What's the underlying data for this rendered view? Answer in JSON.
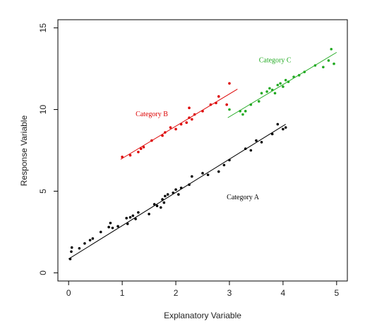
{
  "chart_data": {
    "type": "scatter",
    "xlabel": "Explanatory Variable",
    "ylabel": "Response Variable",
    "xlim": [
      -0.2,
      5.2
    ],
    "ylim": [
      -0.5,
      15.5
    ],
    "xticks": [
      0,
      1,
      2,
      3,
      4,
      5
    ],
    "yticks": [
      0,
      5,
      10,
      15
    ],
    "grid": false,
    "series": [
      {
        "name": "Category A",
        "color": "#000000",
        "points": [
          [
            0.03,
            0.85
          ],
          [
            0.05,
            1.3
          ],
          [
            0.06,
            1.55
          ],
          [
            0.2,
            1.5
          ],
          [
            0.3,
            1.8
          ],
          [
            0.4,
            2.0
          ],
          [
            0.45,
            2.1
          ],
          [
            0.6,
            2.5
          ],
          [
            0.75,
            2.8
          ],
          [
            0.78,
            3.05
          ],
          [
            0.82,
            2.75
          ],
          [
            0.92,
            2.85
          ],
          [
            1.08,
            3.35
          ],
          [
            1.1,
            3.0
          ],
          [
            1.15,
            3.4
          ],
          [
            1.2,
            3.5
          ],
          [
            1.25,
            3.3
          ],
          [
            1.3,
            3.7
          ],
          [
            1.5,
            3.6
          ],
          [
            1.6,
            4.2
          ],
          [
            1.65,
            4.1
          ],
          [
            1.72,
            4.0
          ],
          [
            1.75,
            4.5
          ],
          [
            1.78,
            4.3
          ],
          [
            1.8,
            4.7
          ],
          [
            1.85,
            4.8
          ],
          [
            1.95,
            4.9
          ],
          [
            2.0,
            5.1
          ],
          [
            2.05,
            4.8
          ],
          [
            2.1,
            5.2
          ],
          [
            2.25,
            5.4
          ],
          [
            2.3,
            5.9
          ],
          [
            2.5,
            6.1
          ],
          [
            2.6,
            6.0
          ],
          [
            2.8,
            6.2
          ],
          [
            2.9,
            6.6
          ],
          [
            3.0,
            6.9
          ],
          [
            3.3,
            7.6
          ],
          [
            3.4,
            7.5
          ],
          [
            3.5,
            8.1
          ],
          [
            3.6,
            8.0
          ],
          [
            3.8,
            8.5
          ],
          [
            3.9,
            9.1
          ],
          [
            4.0,
            8.8
          ],
          [
            4.05,
            8.9
          ]
        ],
        "fit": {
          "x": [
            0.0,
            4.05
          ],
          "y": [
            0.85,
            9.1
          ]
        },
        "label": {
          "text": "Category A",
          "x": 2.95,
          "y": 4.5
        }
      },
      {
        "name": "Category B",
        "color": "#dd0000",
        "points": [
          [
            1.0,
            7.1
          ],
          [
            1.15,
            7.2
          ],
          [
            1.3,
            7.4
          ],
          [
            1.35,
            7.6
          ],
          [
            1.4,
            7.7
          ],
          [
            1.55,
            8.1
          ],
          [
            1.75,
            8.4
          ],
          [
            1.8,
            8.6
          ],
          [
            1.9,
            8.9
          ],
          [
            2.0,
            8.8
          ],
          [
            2.1,
            9.1
          ],
          [
            2.2,
            9.2
          ],
          [
            2.25,
            9.5
          ],
          [
            2.3,
            9.4
          ],
          [
            2.35,
            9.7
          ],
          [
            2.25,
            10.1
          ],
          [
            2.5,
            9.9
          ],
          [
            2.65,
            10.3
          ],
          [
            2.75,
            10.4
          ],
          [
            2.8,
            10.8
          ],
          [
            2.95,
            10.3
          ],
          [
            3.0,
            11.6
          ]
        ],
        "fit": {
          "x": [
            0.97,
            3.15
          ],
          "y": [
            6.95,
            11.25
          ]
        },
        "label": {
          "text": "Category B",
          "x": 1.25,
          "y": 9.6
        }
      },
      {
        "name": "Category C",
        "color": "#22aa22",
        "points": [
          [
            3.0,
            10.0
          ],
          [
            3.2,
            9.9
          ],
          [
            3.25,
            9.7
          ],
          [
            3.3,
            9.9
          ],
          [
            3.4,
            10.3
          ],
          [
            3.55,
            10.5
          ],
          [
            3.6,
            11.0
          ],
          [
            3.7,
            11.1
          ],
          [
            3.75,
            11.3
          ],
          [
            3.8,
            11.2
          ],
          [
            3.85,
            11.0
          ],
          [
            3.9,
            11.5
          ],
          [
            3.95,
            11.6
          ],
          [
            4.0,
            11.4
          ],
          [
            4.05,
            11.8
          ],
          [
            4.1,
            11.7
          ],
          [
            4.2,
            12.0
          ],
          [
            4.3,
            12.1
          ],
          [
            4.4,
            12.3
          ],
          [
            4.6,
            12.7
          ],
          [
            4.75,
            12.6
          ],
          [
            4.85,
            13.0
          ],
          [
            4.9,
            13.7
          ],
          [
            4.95,
            12.8
          ]
        ],
        "fit": {
          "x": [
            2.97,
            5.0
          ],
          "y": [
            9.5,
            13.5
          ]
        },
        "label": {
          "text": "Category C",
          "x": 3.55,
          "y": 12.9
        }
      }
    ]
  }
}
